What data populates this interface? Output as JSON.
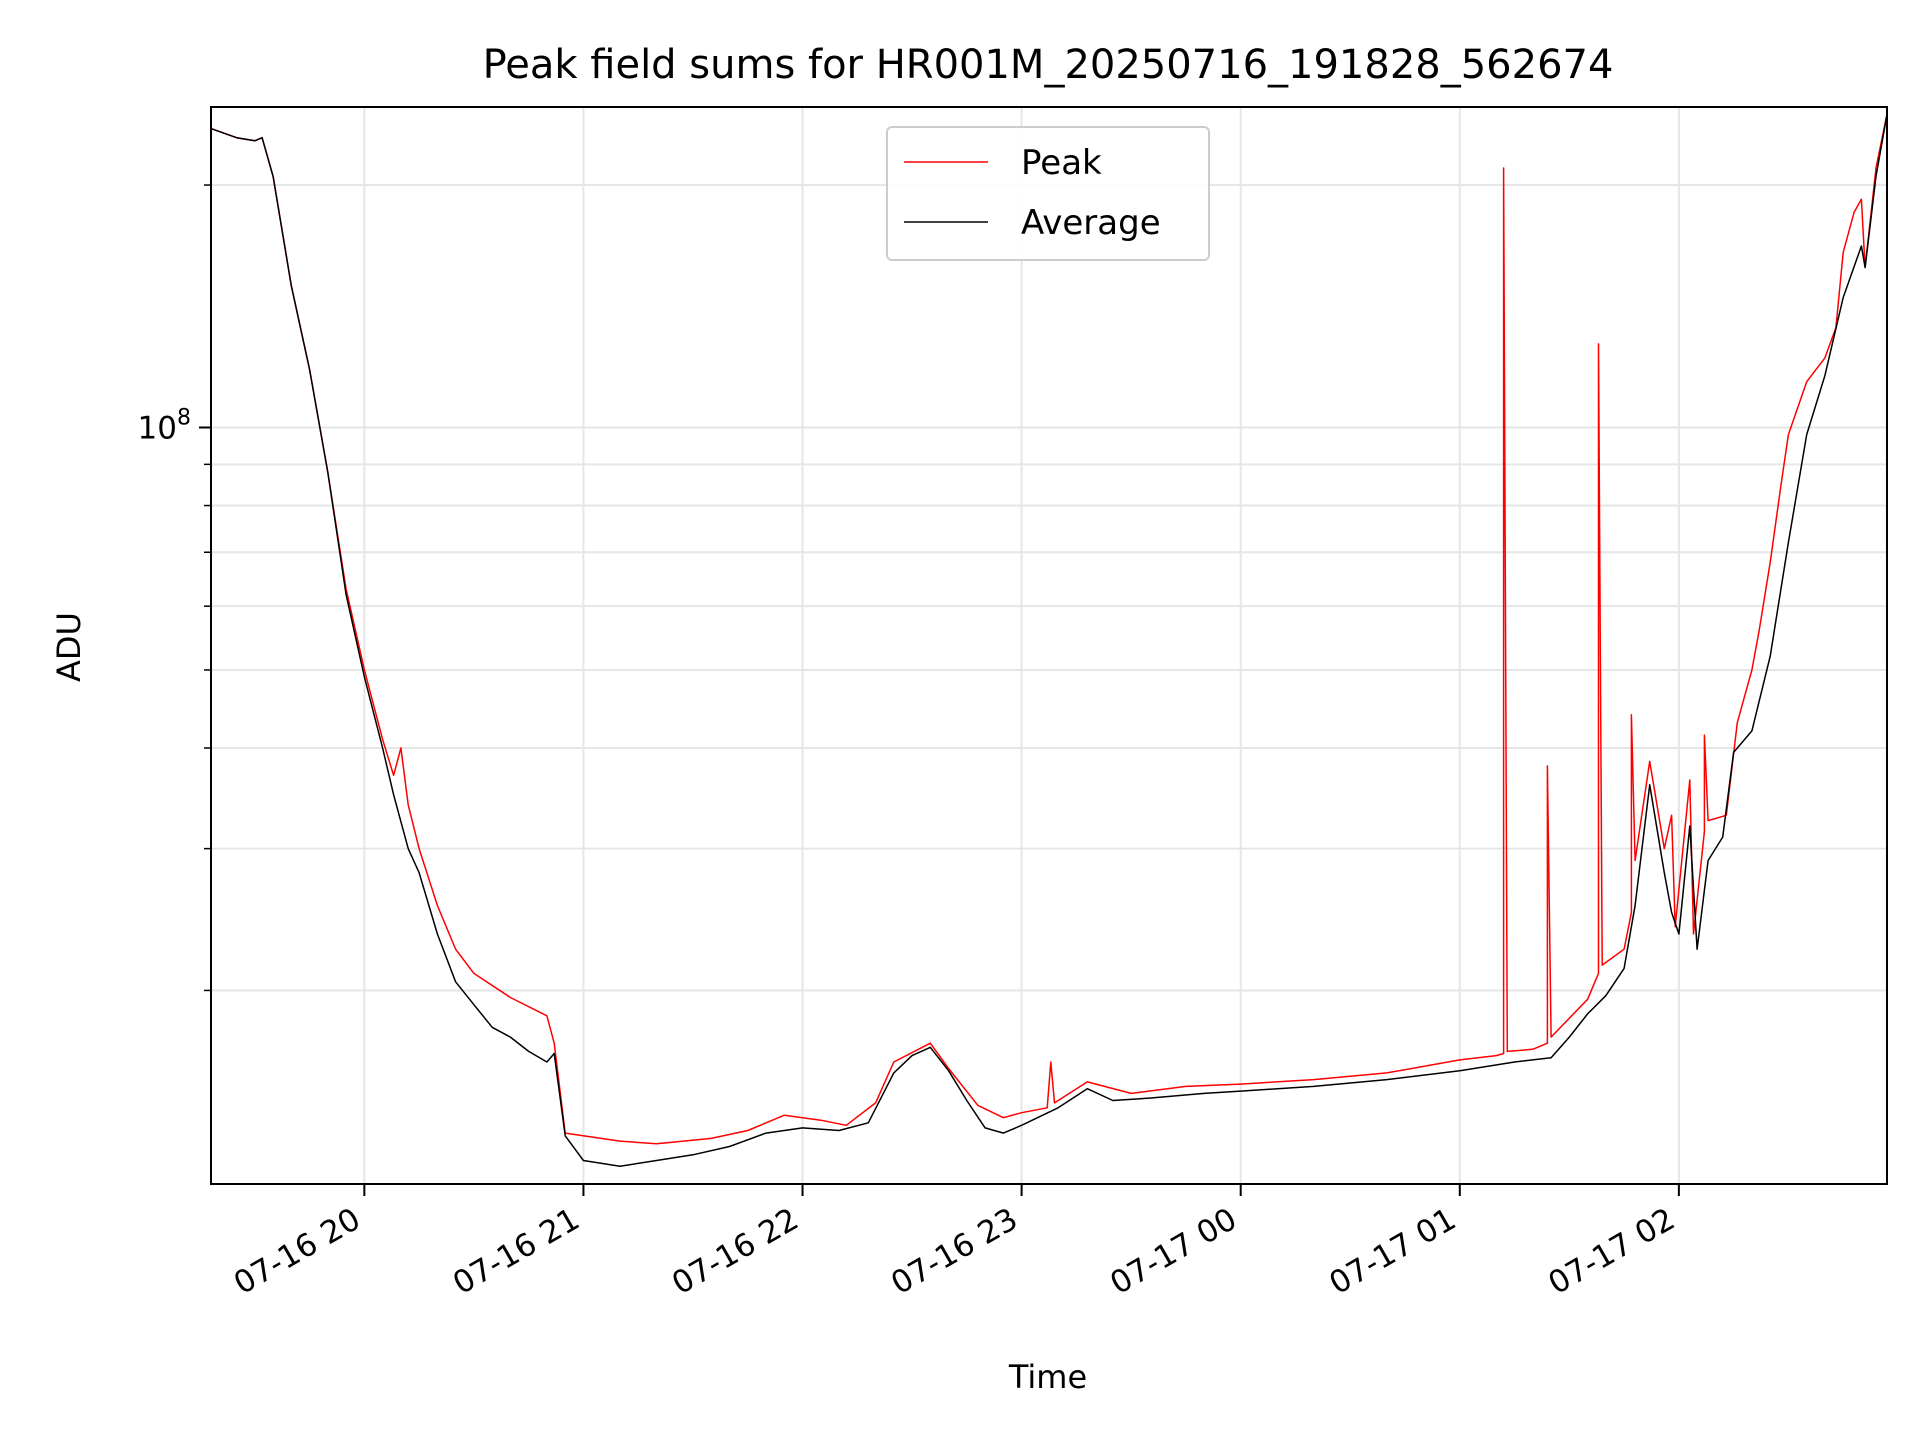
{
  "chart_data": {
    "type": "line",
    "title": "Peak field sums for HR001M_20250716_191828_562674",
    "xlabel": "Time",
    "ylabel": "ADU",
    "y_scale": "log",
    "y_major_tick": {
      "value": 100000000,
      "label_base": "10",
      "label_exp": "8"
    },
    "ylim": [
      11500000,
      250000000
    ],
    "xlim": [
      "2025-07-16 19:18",
      "2025-07-17 02:57"
    ],
    "x_ticks": [
      "07-16 20",
      "07-16 21",
      "07-16 22",
      "07-16 23",
      "07-17 00",
      "07-17 01",
      "07-17 02"
    ],
    "x_tick_times": [
      "2025-07-16 20:00",
      "2025-07-16 21:00",
      "2025-07-16 22:00",
      "2025-07-16 23:00",
      "2025-07-17 00:00",
      "2025-07-17 01:00",
      "2025-07-17 02:00"
    ],
    "grid": true,
    "legend_position": "top-center",
    "series": [
      {
        "name": "Peak",
        "color": "#ff0000",
        "points": [
          [
            "2025-07-16 19:18",
            235000000
          ],
          [
            "2025-07-16 19:25",
            229000000
          ],
          [
            "2025-07-16 19:30",
            227000000
          ],
          [
            "2025-07-16 19:32",
            229000000
          ],
          [
            "2025-07-16 19:35",
            205000000
          ],
          [
            "2025-07-16 19:40",
            150000000
          ],
          [
            "2025-07-16 19:45",
            118000000
          ],
          [
            "2025-07-16 19:50",
            88000000
          ],
          [
            "2025-07-16 19:55",
            63000000
          ],
          [
            "2025-07-16 20:00",
            50000000
          ],
          [
            "2025-07-16 20:05",
            41000000
          ],
          [
            "2025-07-16 20:08",
            37000000
          ],
          [
            "2025-07-16 20:10",
            40000000
          ],
          [
            "2025-07-16 20:12",
            34000000
          ],
          [
            "2025-07-16 20:15",
            30000000
          ],
          [
            "2025-07-16 20:20",
            25500000
          ],
          [
            "2025-07-16 20:25",
            22500000
          ],
          [
            "2025-07-16 20:30",
            21000000
          ],
          [
            "2025-07-16 20:40",
            19600000
          ],
          [
            "2025-07-16 20:50",
            18600000
          ],
          [
            "2025-07-16 20:52",
            17200000
          ],
          [
            "2025-07-16 20:55",
            13300000
          ],
          [
            "2025-07-16 21:10",
            13000000
          ],
          [
            "2025-07-16 21:20",
            12900000
          ],
          [
            "2025-07-16 21:35",
            13100000
          ],
          [
            "2025-07-16 21:45",
            13400000
          ],
          [
            "2025-07-16 21:55",
            14000000
          ],
          [
            "2025-07-16 22:05",
            13800000
          ],
          [
            "2025-07-16 22:12",
            13600000
          ],
          [
            "2025-07-16 22:20",
            14500000
          ],
          [
            "2025-07-16 22:25",
            16300000
          ],
          [
            "2025-07-16 22:35",
            17200000
          ],
          [
            "2025-07-16 22:40",
            16000000
          ],
          [
            "2025-07-16 22:48",
            14400000
          ],
          [
            "2025-07-16 22:55",
            13900000
          ],
          [
            "2025-07-16 23:00",
            14100000
          ],
          [
            "2025-07-16 23:07",
            14300000
          ],
          [
            "2025-07-16 23:08",
            16300000
          ],
          [
            "2025-07-16 23:09",
            14500000
          ],
          [
            "2025-07-16 23:18",
            15400000
          ],
          [
            "2025-07-16 23:30",
            14900000
          ],
          [
            "2025-07-16 23:45",
            15200000
          ],
          [
            "2025-07-17 00:00",
            15300000
          ],
          [
            "2025-07-17 00:20",
            15500000
          ],
          [
            "2025-07-17 00:40",
            15800000
          ],
          [
            "2025-07-17 01:00",
            16400000
          ],
          [
            "2025-07-17 01:10",
            16600000
          ],
          [
            "2025-07-17 01:12",
            16700000
          ],
          [
            "2025-07-17 01:12",
            210000000
          ],
          [
            "2025-07-17 01:13",
            16800000
          ],
          [
            "2025-07-17 01:20",
            16900000
          ],
          [
            "2025-07-17 01:24",
            17200000
          ],
          [
            "2025-07-17 01:24",
            38000000
          ],
          [
            "2025-07-17 01:25",
            17500000
          ],
          [
            "2025-07-17 01:35",
            19500000
          ],
          [
            "2025-07-17 01:38",
            21000000
          ],
          [
            "2025-07-17 01:38",
            127000000
          ],
          [
            "2025-07-17 01:39",
            21500000
          ],
          [
            "2025-07-17 01:45",
            22500000
          ],
          [
            "2025-07-17 01:47",
            25000000
          ],
          [
            "2025-07-17 01:47",
            44000000
          ],
          [
            "2025-07-17 01:48",
            29000000
          ],
          [
            "2025-07-17 01:52",
            38500000
          ],
          [
            "2025-07-17 01:56",
            30000000
          ],
          [
            "2025-07-17 01:58",
            33000000
          ],
          [
            "2025-07-17 01:59",
            24000000
          ],
          [
            "2025-07-17 02:03",
            36500000
          ],
          [
            "2025-07-17 02:04",
            23500000
          ],
          [
            "2025-07-17 02:07",
            31500000
          ],
          [
            "2025-07-17 02:07",
            41500000
          ],
          [
            "2025-07-17 02:08",
            32500000
          ],
          [
            "2025-07-17 02:13",
            33000000
          ],
          [
            "2025-07-17 02:16",
            43000000
          ],
          [
            "2025-07-17 02:20",
            50000000
          ],
          [
            "2025-07-17 02:22",
            56000000
          ],
          [
            "2025-07-17 02:25",
            68000000
          ],
          [
            "2025-07-17 02:28",
            85000000
          ],
          [
            "2025-07-17 02:30",
            98000000
          ],
          [
            "2025-07-17 02:35",
            114000000
          ],
          [
            "2025-07-17 02:40",
            122000000
          ],
          [
            "2025-07-17 02:43",
            133000000
          ],
          [
            "2025-07-17 02:45",
            165000000
          ],
          [
            "2025-07-17 02:48",
            185000000
          ],
          [
            "2025-07-17 02:50",
            192000000
          ],
          [
            "2025-07-17 02:51",
            158000000
          ],
          [
            "2025-07-17 02:54",
            210000000
          ],
          [
            "2025-07-17 02:57",
            245000000
          ]
        ]
      },
      {
        "name": "Average",
        "color": "#000000",
        "points": [
          [
            "2025-07-16 19:18",
            235000000
          ],
          [
            "2025-07-16 19:25",
            229000000
          ],
          [
            "2025-07-16 19:30",
            227000000
          ],
          [
            "2025-07-16 19:32",
            229000000
          ],
          [
            "2025-07-16 19:35",
            205000000
          ],
          [
            "2025-07-16 19:40",
            150000000
          ],
          [
            "2025-07-16 19:45",
            118000000
          ],
          [
            "2025-07-16 19:50",
            88000000
          ],
          [
            "2025-07-16 19:55",
            62000000
          ],
          [
            "2025-07-16 20:00",
            49000000
          ],
          [
            "2025-07-16 20:05",
            40000000
          ],
          [
            "2025-07-16 20:08",
            35000000
          ],
          [
            "2025-07-16 20:12",
            30000000
          ],
          [
            "2025-07-16 20:15",
            28000000
          ],
          [
            "2025-07-16 20:20",
            23500000
          ],
          [
            "2025-07-16 20:25",
            20500000
          ],
          [
            "2025-07-16 20:30",
            19200000
          ],
          [
            "2025-07-16 20:35",
            18000000
          ],
          [
            "2025-07-16 20:40",
            17500000
          ],
          [
            "2025-07-16 20:45",
            16800000
          ],
          [
            "2025-07-16 20:50",
            16300000
          ],
          [
            "2025-07-16 20:52",
            16700000
          ],
          [
            "2025-07-16 20:55",
            13200000
          ],
          [
            "2025-07-16 21:00",
            12300000
          ],
          [
            "2025-07-16 21:10",
            12100000
          ],
          [
            "2025-07-16 21:20",
            12300000
          ],
          [
            "2025-07-16 21:30",
            12500000
          ],
          [
            "2025-07-16 21:40",
            12800000
          ],
          [
            "2025-07-16 21:50",
            13300000
          ],
          [
            "2025-07-16 22:00",
            13500000
          ],
          [
            "2025-07-16 22:10",
            13400000
          ],
          [
            "2025-07-16 22:18",
            13700000
          ],
          [
            "2025-07-16 22:25",
            15800000
          ],
          [
            "2025-07-16 22:30",
            16600000
          ],
          [
            "2025-07-16 22:35",
            17000000
          ],
          [
            "2025-07-16 22:40",
            15900000
          ],
          [
            "2025-07-16 22:45",
            14600000
          ],
          [
            "2025-07-16 22:50",
            13500000
          ],
          [
            "2025-07-16 22:55",
            13300000
          ],
          [
            "2025-07-16 23:00",
            13600000
          ],
          [
            "2025-07-16 23:10",
            14300000
          ],
          [
            "2025-07-16 23:18",
            15100000
          ],
          [
            "2025-07-16 23:25",
            14600000
          ],
          [
            "2025-07-16 23:35",
            14700000
          ],
          [
            "2025-07-16 23:50",
            14900000
          ],
          [
            "2025-07-17 00:00",
            15000000
          ],
          [
            "2025-07-17 00:20",
            15200000
          ],
          [
            "2025-07-17 00:40",
            15500000
          ],
          [
            "2025-07-17 01:00",
            15900000
          ],
          [
            "2025-07-17 01:15",
            16300000
          ],
          [
            "2025-07-17 01:25",
            16500000
          ],
          [
            "2025-07-17 01:30",
            17500000
          ],
          [
            "2025-07-17 01:35",
            18700000
          ],
          [
            "2025-07-17 01:40",
            19700000
          ],
          [
            "2025-07-17 01:45",
            21300000
          ],
          [
            "2025-07-17 01:48",
            25500000
          ],
          [
            "2025-07-17 01:52",
            36000000
          ],
          [
            "2025-07-17 01:56",
            28000000
          ],
          [
            "2025-07-17 01:58",
            25000000
          ],
          [
            "2025-07-17 02:00",
            23500000
          ],
          [
            "2025-07-17 02:03",
            32000000
          ],
          [
            "2025-07-17 02:05",
            22500000
          ],
          [
            "2025-07-17 02:08",
            29000000
          ],
          [
            "2025-07-17 02:12",
            31000000
          ],
          [
            "2025-07-17 02:15",
            39500000
          ],
          [
            "2025-07-17 02:20",
            42000000
          ],
          [
            "2025-07-17 02:25",
            52000000
          ],
          [
            "2025-07-17 02:30",
            72000000
          ],
          [
            "2025-07-17 02:35",
            98000000
          ],
          [
            "2025-07-17 02:40",
            116000000
          ],
          [
            "2025-07-17 02:45",
            145000000
          ],
          [
            "2025-07-17 02:50",
            168000000
          ],
          [
            "2025-07-17 02:51",
            158000000
          ],
          [
            "2025-07-17 02:54",
            205000000
          ],
          [
            "2025-07-17 02:57",
            245000000
          ]
        ]
      }
    ]
  }
}
